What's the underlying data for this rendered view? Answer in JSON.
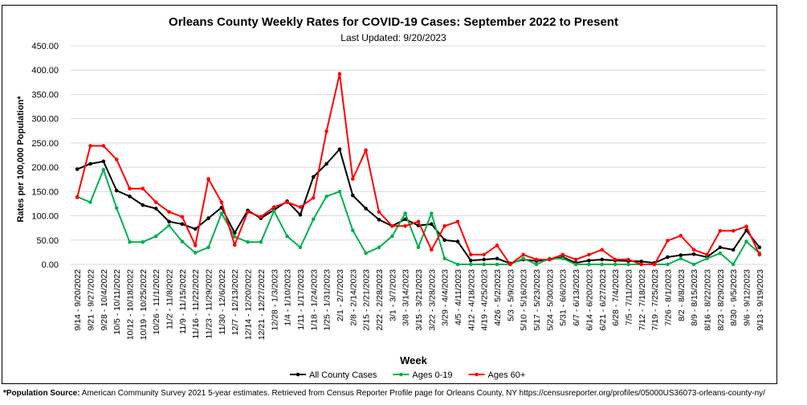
{
  "chart_data": {
    "type": "line",
    "title": "Orleans County Weekly Rates for COVID-19 Cases: September 2022 to Present",
    "subtitle": "Last Updated: 9/20/2023",
    "xlabel": "Week",
    "ylabel": "Rates per 100,000 Population*",
    "ylim": [
      0,
      450
    ],
    "yticks": [
      "0.00",
      "50.00",
      "100.00",
      "150.00",
      "200.00",
      "250.00",
      "300.00",
      "350.00",
      "400.00",
      "450.00"
    ],
    "grid": "horizontal",
    "legend_position": "bottom",
    "categories": [
      "9/14 - 9/20/2022",
      "9/21 - 9/27/2022",
      "9/28 - 10/4/2022",
      "10/5 - 10/11/2022",
      "10/12 - 10/18/2022",
      "10/19 - 10/25/2022",
      "10/26 - 11/1/2022",
      "11/2 - 11/8/2022",
      "11/9 - 11/15/2022",
      "11/16 - 11/22/2022",
      "11/23 - 11/29/2022",
      "11/30 - 12/6/2022",
      "12/7 - 12/13/2022",
      "12/14 - 12/20/2022",
      "12/21 - 12/27/2022",
      "12/28 - 1/3/2023",
      "1/4 - 1/10/2023",
      "1/11 - 1/17/2023",
      "1/18 - 1/24/2023",
      "1/25 - 1/31/2023",
      "2/1 - 2/7/2023",
      "2/8 - 2/14/2023",
      "2/15 - 2/21/2023",
      "2/22 - 2/28/2023",
      "3/1 - 3/7/2023",
      "3/8 - 3/14/2023",
      "3/15 - 3/21/2023",
      "3/22 - 3/28/2023",
      "3/29 - 4/4/2023",
      "4/5 - 4/11/2023",
      "4/12 - 4/18/2023",
      "4/19 - 4/25/2023",
      "4/26 - 5/2/2023",
      "5/3 - 5/9/2023",
      "5/10 - 5/16/2023",
      "5/17 - 5/23/2023",
      "5/24 - 5/30/2023",
      "5/31 - 6/6/2023",
      "6/7 - 6/13/2023",
      "6/14 - 6/20/2023",
      "6/21 - 6/27/2023",
      "6/28 - 7/4/2023",
      "7/5 - 7/11/2023",
      "7/12 - 7/18/2023",
      "7/19 - 7/25/2023",
      "7/26 - 8/1/2023",
      "8/2 - 8/8/2023",
      "8/9 - 8/15/2023",
      "8/16 - 8/22/2023",
      "8/23 - 8/29/2023",
      "8/30 - 9/5/2023",
      "9/6 - 9/12/2023",
      "9/13 - 9/19/2023"
    ],
    "series": [
      {
        "name": "All County Cases",
        "color": "#000000",
        "values": [
          196,
          207,
          212,
          152,
          140,
          122,
          115,
          88,
          83,
          73,
          95,
          117,
          65,
          111,
          95,
          112,
          130,
          102,
          180,
          207,
          237,
          142,
          115,
          92,
          79,
          93,
          80,
          83,
          50,
          47,
          8,
          10,
          12,
          2,
          10,
          7,
          10,
          15,
          3,
          8,
          10,
          8,
          7,
          6,
          3,
          15,
          19,
          21,
          15,
          35,
          30,
          70,
          35
        ]
      },
      {
        "name": "Ages 0-19",
        "color": "#00b050",
        "values": [
          139,
          128,
          195,
          116,
          46,
          46,
          58,
          80,
          47,
          24,
          35,
          105,
          57,
          46,
          46,
          110,
          58,
          35,
          93,
          140,
          150,
          70,
          23,
          35,
          58,
          105,
          35,
          105,
          12,
          0,
          0,
          0,
          0,
          0,
          12,
          0,
          12,
          12,
          0,
          0,
          0,
          0,
          0,
          0,
          0,
          0,
          12,
          0,
          12,
          23,
          0,
          47,
          23
        ]
      },
      {
        "name": "Ages 60+",
        "color": "#ff0000",
        "values": [
          138,
          244,
          244,
          216,
          156,
          156,
          128,
          108,
          98,
          39,
          176,
          128,
          40,
          108,
          98,
          118,
          128,
          118,
          137,
          274,
          392,
          176,
          235,
          108,
          79,
          79,
          88,
          30,
          79,
          88,
          20,
          20,
          39,
          0,
          20,
          10,
          10,
          20,
          10,
          20,
          30,
          10,
          10,
          0,
          0,
          49,
          59,
          30,
          20,
          69,
          69,
          78,
          20
        ]
      }
    ]
  },
  "footnote": {
    "label": "*Population Source:",
    "text": " American Community Survey 2021 5-year estimates. Retrieved from Census Reporter Profile page for Orleans County, NY https://censusreporter.org/profiles/05000US36073-orleans-county-ny/"
  }
}
